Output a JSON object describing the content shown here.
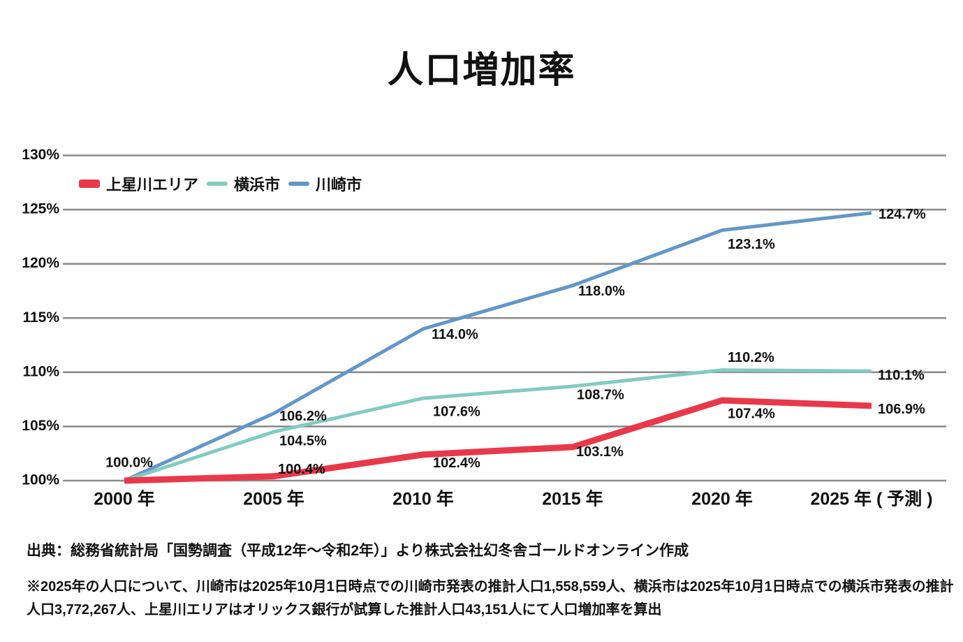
{
  "title": "人口増加率",
  "source": "出典：総務省統計局「国勢調査（平成12年～令和2年）」より株式会社幻冬舎ゴールドオンライン作成",
  "note": "※2025年の人口について、川崎市は2025年10月1日時点での川崎市発表の推計人口1,558,559人、横浜市は2025年10月1日時点での横浜市発表の推計人口3,772,267人、上星川エリアはオリックス銀行が試算した推計人口43,151人にて人口増加率を算出",
  "chart_data": {
    "type": "line",
    "title": "人口増加率",
    "categories": [
      "2000 年",
      "2005 年",
      "2010 年",
      "2015 年",
      "2020 年",
      "2025 年 ( 予測 )"
    ],
    "y_ticks": [
      "130%",
      "125%",
      "120%",
      "115%",
      "110%",
      "105%",
      "100%"
    ],
    "ylim": [
      100,
      130
    ],
    "unit": "%",
    "grid": true,
    "legend_position": "inside-top-left",
    "start_label": "100.0%",
    "start_label_offset": {
      "dx": 7,
      "dy": -25,
      "anchor": "middle"
    },
    "series": [
      {
        "id": "kamihoshikawa-area",
        "name": "上星川エリア",
        "color": "#e8394a",
        "stroke_width": 9,
        "values": [
          100.0,
          100.4,
          102.4,
          103.1,
          107.4,
          106.9
        ],
        "label_offsets": [
          null,
          {
            "dx": 6,
            "dy": -9
          },
          {
            "dx": 14,
            "dy": 13
          },
          {
            "dx": 5,
            "dy": 8
          },
          {
            "dx": 8,
            "dy": 20
          },
          {
            "dx": 9,
            "dy": 6
          }
        ]
      },
      {
        "id": "yokohama-city",
        "name": "横浜市",
        "color": "#82cbc0",
        "stroke_width": 5,
        "values": [
          100.0,
          104.5,
          107.6,
          108.7,
          110.2,
          110.1
        ],
        "label_offsets": [
          null,
          {
            "dx": 8,
            "dy": 14
          },
          {
            "dx": 14,
            "dy": 20
          },
          {
            "dx": 6,
            "dy": 13
          },
          {
            "dx": 8,
            "dy": -17
          },
          {
            "dx": 9,
            "dy": 7
          }
        ]
      },
      {
        "id": "kawasaki-city",
        "name": "川崎市",
        "color": "#6496c8",
        "stroke_width": 5,
        "values": [
          100.0,
          106.2,
          114.0,
          118.0,
          123.1,
          124.7
        ],
        "label_offsets": [
          null,
          {
            "dx": 8,
            "dy": 5
          },
          {
            "dx": 12,
            "dy": 9
          },
          {
            "dx": 8,
            "dy": 9
          },
          {
            "dx": 8,
            "dy": 21
          },
          {
            "dx": 10,
            "dy": 3
          }
        ]
      }
    ]
  }
}
